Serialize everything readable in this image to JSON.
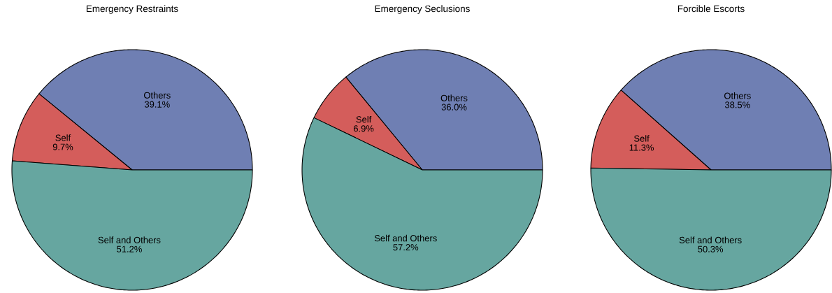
{
  "chart_data": [
    {
      "type": "pie",
      "title": "Emergency Restraints",
      "categories": [
        "Others",
        "Self",
        "Self and Others"
      ],
      "values": [
        39.1,
        9.7,
        51.2
      ],
      "value_labels": [
        "39.1%",
        "9.7%",
        "51.2%"
      ],
      "colors": [
        "#6f7fb3",
        "#d45d5b",
        "#66a6a0"
      ]
    },
    {
      "type": "pie",
      "title": "Emergency Seclusions",
      "categories": [
        "Others",
        "Self",
        "Self and Others"
      ],
      "values": [
        36.0,
        6.9,
        57.2
      ],
      "value_labels": [
        "36.0%",
        "6.9%",
        "57.2%"
      ],
      "colors": [
        "#6f7fb3",
        "#d45d5b",
        "#66a6a0"
      ]
    },
    {
      "type": "pie",
      "title": "Forcible Escorts",
      "categories": [
        "Others",
        "Self",
        "Self and Others"
      ],
      "values": [
        38.5,
        11.3,
        50.3
      ],
      "value_labels": [
        "38.5%",
        "11.3%",
        "50.3%"
      ],
      "colors": [
        "#6f7fb3",
        "#d45d5b",
        "#66a6a0"
      ]
    }
  ]
}
